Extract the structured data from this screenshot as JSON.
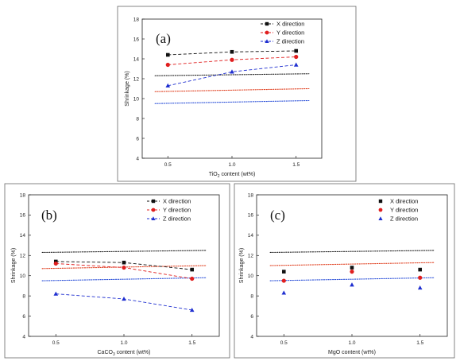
{
  "colors": {
    "x": "#111111",
    "y": "#e01f1f",
    "z": "#1f2fd0",
    "ref_x": "#222222",
    "ref_y": "#e04020",
    "ref_z": "#2a4fd8"
  },
  "chart_data": [
    {
      "type": "line",
      "panel_label": "(a)",
      "xlabel_main": "TiO",
      "xlabel_sub": "2",
      "xlabel_rest": " content (wt%)",
      "ylabel": "Shrinkage (%)",
      "x": [
        0.5,
        1.0,
        1.5
      ],
      "xlim": [
        0.3,
        1.7
      ],
      "ylim": [
        4,
        18
      ],
      "xticks": [
        "0.5",
        "1.0",
        "1.5"
      ],
      "yticks": [
        "4",
        "6",
        "8",
        "10",
        "12",
        "14",
        "16",
        "18"
      ],
      "connected": true,
      "series": [
        {
          "name": "X direction",
          "key": "x",
          "values": [
            14.4,
            14.7,
            14.8
          ]
        },
        {
          "name": "Y direction",
          "key": "y",
          "values": [
            13.4,
            13.9,
            14.2
          ]
        },
        {
          "name": "Z direction",
          "key": "z",
          "values": [
            11.3,
            12.7,
            13.4
          ]
        }
      ],
      "reference_lines": [
        {
          "key": "x",
          "from": 12.3,
          "to": 12.5
        },
        {
          "key": "y",
          "from": 10.7,
          "to": 11.0
        },
        {
          "key": "z",
          "from": 9.5,
          "to": 9.8
        }
      ]
    },
    {
      "type": "line",
      "panel_label": "(b)",
      "xlabel_main": "CaCO",
      "xlabel_sub": "3",
      "xlabel_rest": " content (wt%)",
      "ylabel": "Shrinkage (%)",
      "x": [
        0.5,
        1.0,
        1.5
      ],
      "xlim": [
        0.3,
        1.7
      ],
      "ylim": [
        4,
        18
      ],
      "xticks": [
        "0.5",
        "1.0",
        "1.5"
      ],
      "yticks": [
        "4",
        "6",
        "8",
        "10",
        "12",
        "14",
        "16",
        "18"
      ],
      "connected": true,
      "series": [
        {
          "name": "X direction",
          "key": "x",
          "values": [
            11.4,
            11.3,
            10.6
          ]
        },
        {
          "name": "Y direction",
          "key": "y",
          "values": [
            11.2,
            10.8,
            9.7
          ]
        },
        {
          "name": "Z direction",
          "key": "z",
          "values": [
            8.2,
            7.7,
            6.6
          ]
        }
      ],
      "reference_lines": [
        {
          "key": "x",
          "from": 12.3,
          "to": 12.5
        },
        {
          "key": "y",
          "from": 10.7,
          "to": 11.0
        },
        {
          "key": "z",
          "from": 9.5,
          "to": 9.8
        }
      ]
    },
    {
      "type": "line",
      "panel_label": "(c)",
      "xlabel_main": "MgO content (wt%)",
      "xlabel_sub": "",
      "xlabel_rest": "",
      "ylabel": "Shrinkage (%)",
      "x": [
        0.5,
        1.0,
        1.5
      ],
      "xlim": [
        0.3,
        1.7
      ],
      "ylim": [
        4,
        18
      ],
      "xticks": [
        "0.5",
        "1.0",
        "1.5"
      ],
      "yticks": [
        "4",
        "6",
        "8",
        "10",
        "12",
        "14",
        "16",
        "18"
      ],
      "connected": false,
      "series": [
        {
          "name": "X direction",
          "key": "x",
          "values": [
            10.4,
            10.8,
            10.6
          ]
        },
        {
          "name": "Y direction",
          "key": "y",
          "values": [
            9.5,
            10.4,
            9.8
          ]
        },
        {
          "name": "Z direction",
          "key": "z",
          "values": [
            8.3,
            9.1,
            8.8
          ]
        }
      ],
      "reference_lines": [
        {
          "key": "x",
          "from": 12.3,
          "to": 12.5
        },
        {
          "key": "y",
          "from": 11.0,
          "to": 11.3
        },
        {
          "key": "z",
          "from": 9.5,
          "to": 9.8
        }
      ]
    }
  ]
}
